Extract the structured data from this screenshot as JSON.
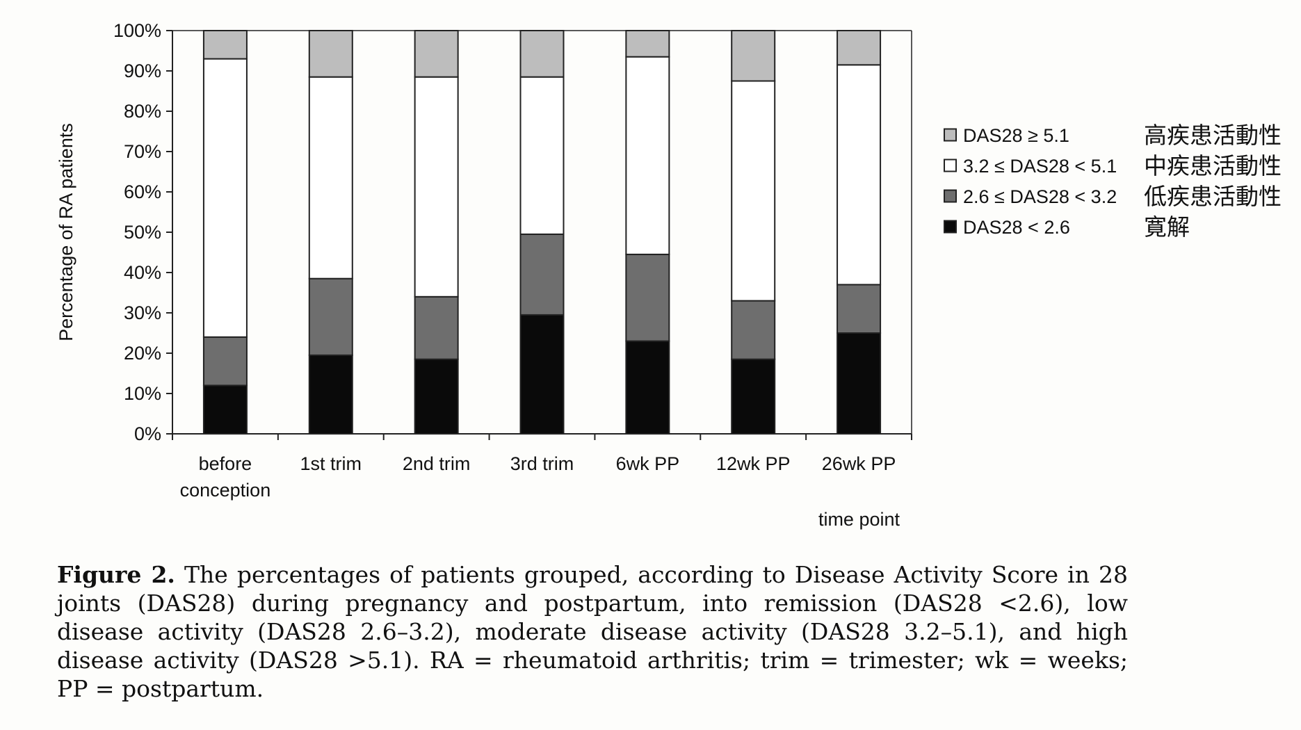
{
  "chart_data": {
    "type": "bar",
    "stacked": true,
    "categories": [
      [
        "before",
        "conception"
      ],
      [
        "1st trim"
      ],
      [
        "2nd trim"
      ],
      [
        "3rd trim"
      ],
      [
        "6wk PP"
      ],
      [
        "12wk PP"
      ],
      [
        "26wk PP"
      ]
    ],
    "series": [
      {
        "name": "DAS28 < 2.6",
        "note": "寛解",
        "color": "#0a0a0a",
        "values": [
          12,
          19.5,
          18.5,
          29.5,
          23,
          18.5,
          25
        ]
      },
      {
        "name": "2.6 ≤ DAS28 < 3.2",
        "note": "低疾患活動性",
        "color": "#6e6e6e",
        "values": [
          12,
          19,
          15.5,
          20,
          21.5,
          14.5,
          12
        ]
      },
      {
        "name": "3.2 ≤ DAS28 < 5.1",
        "note": "中疾患活動性",
        "color": "#ffffff",
        "values": [
          69,
          50,
          54.5,
          39,
          49,
          54.5,
          54.5
        ]
      },
      {
        "name": "DAS28 ≥ 5.1",
        "note": "高疾患活動性",
        "color": "#bdbdbd",
        "values": [
          7,
          11.5,
          11.5,
          11.5,
          6.5,
          12.5,
          8.5
        ]
      }
    ],
    "legend_order": [
      3,
      2,
      1,
      0
    ],
    "y_ticks": [
      "0%",
      "10%",
      "20%",
      "30%",
      "40%",
      "50%",
      "60%",
      "70%",
      "80%",
      "90%",
      "100%"
    ],
    "ylim": [
      0,
      100
    ],
    "ylabel": "Percentage of RA patients",
    "xlabel": "time point",
    "grid": false,
    "legend_position": "right"
  },
  "caption": {
    "label": "Figure 2.",
    "text": "The percentages of patients grouped, according to Disease Activity Score in 28 joints (DAS28) during pregnancy and postpartum, into remission (DAS28 <2.6), low disease activity (DAS28 2.6–3.2), moderate disease activity (DAS28 3.2–5.1), and high disease activity (DAS28 >5.1). RA = rheumatoid arthritis; trim = trimester; wk = weeks; PP = postpartum."
  }
}
